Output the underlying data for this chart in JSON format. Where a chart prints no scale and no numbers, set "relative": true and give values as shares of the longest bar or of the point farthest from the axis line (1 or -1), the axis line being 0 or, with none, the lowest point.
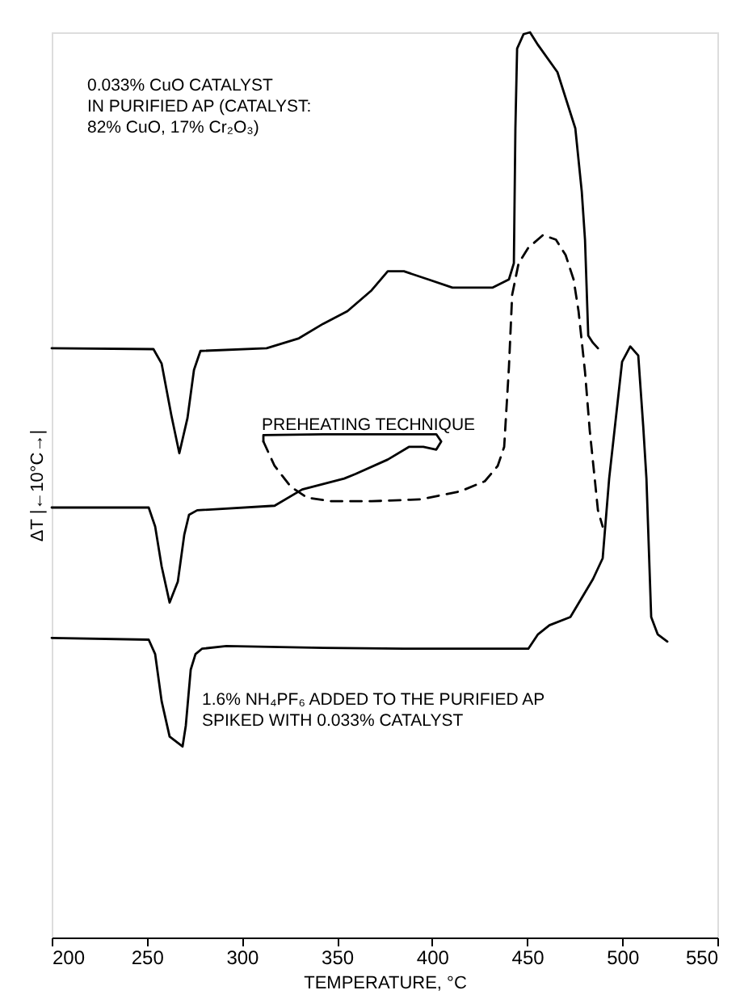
{
  "chart_data": {
    "type": "line",
    "relative": true,
    "xlabel": "TEMPERATURE, °C",
    "ylabel": "ΔT |←10°C→|",
    "xlim": [
      200,
      550
    ],
    "xticks": [
      200,
      250,
      300,
      350,
      400,
      450,
      500,
      550
    ],
    "grid": false,
    "annotations": [
      "0.033% CuO CATALYST\nIN PURIFIED AP (CATALYST:\n82% CuO, 17% Cr₂O₃)",
      "PREHEATING TECHNIQUE",
      "1.6% NH₄PF₆ ADDED TO THE PURIFIED AP\nSPIKED WITH 0.033% CATALYST"
    ],
    "series": [
      {
        "color": "#000000",
        "line_style": "solid",
        "x": [
          200,
          253.5,
          257.8,
          262.9,
          267.1,
          271.4,
          274.8,
          278.2,
          313.0,
          330.0,
          342.7,
          355.5,
          368.2,
          376.7,
          385.2,
          398.0,
          410.7,
          431.9,
          440.4,
          443.0,
          443.8,
          444.7,
          448.1,
          451.5,
          455.7,
          465.9,
          475.3,
          478.7,
          480.4,
          482.1,
          484.6,
          487.2
        ],
        "values": [
          0.651,
          0.65,
          0.634,
          0.577,
          0.535,
          0.574,
          0.627,
          0.648,
          0.651,
          0.662,
          0.678,
          0.692,
          0.715,
          0.736,
          0.736,
          0.727,
          0.718,
          0.718,
          0.727,
          0.745,
          0.894,
          0.982,
          0.998,
          1.0,
          0.986,
          0.956,
          0.894,
          0.824,
          0.771,
          0.665,
          0.657,
          0.651
        ]
      },
      {
        "color": "#000000",
        "line_style": "solid",
        "x": [
          200,
          251.0,
          254.4,
          257.8,
          262.0,
          266.3,
          269.7,
          272.2,
          276.5,
          317.2,
          331.7,
          353.8,
          359.7,
          376.7,
          387.8,
          395.4,
          402.2,
          404.8,
          402.2,
          376.7,
          342.7,
          311.3,
          311.3
        ],
        "values": [
          0.475,
          0.475,
          0.454,
          0.41,
          0.37,
          0.393,
          0.445,
          0.467,
          0.472,
          0.477,
          0.495,
          0.507,
          0.512,
          0.528,
          0.542,
          0.542,
          0.539,
          0.548,
          0.556,
          0.556,
          0.556,
          0.555,
          0.548
        ]
      },
      {
        "color": "#000000",
        "line_style": "dashed",
        "x": [
          311.3,
          317.2,
          325.7,
          334.2,
          347.0,
          368.2,
          393.7,
          414.9,
          427.7,
          434.5,
          437.9,
          440.4,
          442.1,
          445.5,
          450.6,
          458.3,
          465.1,
          470.2,
          474.4,
          477.0,
          480.4,
          482.9,
          485.5,
          487.2,
          489.7
        ],
        "values": [
          0.548,
          0.521,
          0.498,
          0.486,
          0.482,
          0.482,
          0.484,
          0.493,
          0.504,
          0.521,
          0.542,
          0.63,
          0.71,
          0.745,
          0.762,
          0.776,
          0.771,
          0.754,
          0.727,
          0.692,
          0.625,
          0.56,
          0.507,
          0.472,
          0.454
        ]
      },
      {
        "color": "#000000",
        "line_style": "solid",
        "x": [
          200,
          251.0,
          254.4,
          257.8,
          262.0,
          268.8,
          270.5,
          273.1,
          275.6,
          279.0,
          291.8,
          342.7,
          385.2,
          450.6,
          455.7,
          461.7,
          472.7,
          484.6,
          489.7,
          493.1,
          499.9,
          504.2,
          508.4,
          511.0,
          512.7,
          515.2,
          518.6,
          523.7
        ],
        "values": [
          0.331,
          0.329,
          0.313,
          0.261,
          0.222,
          0.211,
          0.234,
          0.296,
          0.313,
          0.319,
          0.322,
          0.32,
          0.319,
          0.319,
          0.335,
          0.345,
          0.354,
          0.396,
          0.419,
          0.507,
          0.636,
          0.653,
          0.643,
          0.565,
          0.507,
          0.354,
          0.335,
          0.327
        ]
      }
    ]
  }
}
